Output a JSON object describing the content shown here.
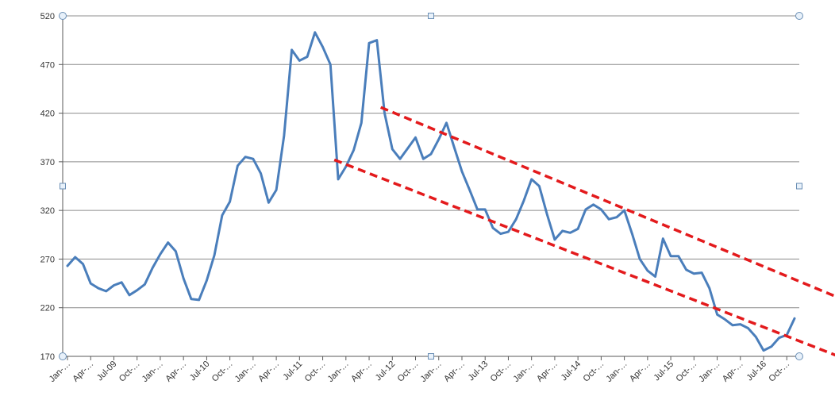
{
  "colors": {
    "series": "#4a7ebb",
    "trend": "#e31a1c",
    "grid": "#8c8c8c",
    "axis": "#595959",
    "handle_fill": "#e8f1fa",
    "handle_stroke": "#6b8fb5"
  },
  "chart_data": {
    "type": "line",
    "title": "",
    "xlabel": "",
    "ylabel": "",
    "ylim": [
      170,
      520
    ],
    "y_ticks": [
      170,
      220,
      270,
      320,
      370,
      420,
      470,
      520
    ],
    "grid": true,
    "legend": "none",
    "x_tick_labels": [
      "Jan-…",
      "Apr-…",
      "Jul-09",
      "Oct-…",
      "Jan-…",
      "Apr-…",
      "Jul-10",
      "Oct-…",
      "Jan-…",
      "Apr-…",
      "Jul-11",
      "Oct-…",
      "Jan-…",
      "Apr-…",
      "Jul-12",
      "Oct-…",
      "Jan-…",
      "Apr-…",
      "Jul-13",
      "Oct-…",
      "Jan-…",
      "Apr-…",
      "Jul-14",
      "Oct-…",
      "Jan-…",
      "Apr-…",
      "Jul-15",
      "Oct-…",
      "Jan-…",
      "Apr-…",
      "Jul-16",
      "Oct-…"
    ],
    "series": [
      {
        "values": [
          263,
          272,
          265,
          245,
          240,
          237,
          243,
          246,
          233,
          238,
          244,
          261,
          275,
          287,
          278,
          250,
          229,
          228,
          248,
          274,
          315,
          329,
          366,
          375,
          373,
          358,
          328,
          341,
          397,
          485,
          474,
          478,
          503,
          488,
          470,
          352,
          365,
          382,
          410,
          492,
          495,
          420,
          383,
          373,
          384,
          395,
          373,
          378,
          393,
          410,
          385,
          360,
          341,
          321,
          321,
          302,
          296,
          298,
          311,
          330,
          352,
          345,
          316,
          290,
          299,
          297,
          301,
          321,
          326,
          321,
          311,
          313,
          320,
          296,
          270,
          258,
          252,
          291,
          273,
          273,
          259,
          255,
          256,
          240,
          213,
          208,
          202,
          203,
          199,
          190,
          176,
          180,
          189,
          192,
          209
        ]
      }
    ],
    "trendlines": [
      {
        "x": [
          40.5,
          101
        ],
        "y": [
          426,
          226
        ]
      },
      {
        "x": [
          34.5,
          101
        ],
        "y": [
          372,
          166
        ]
      }
    ]
  }
}
